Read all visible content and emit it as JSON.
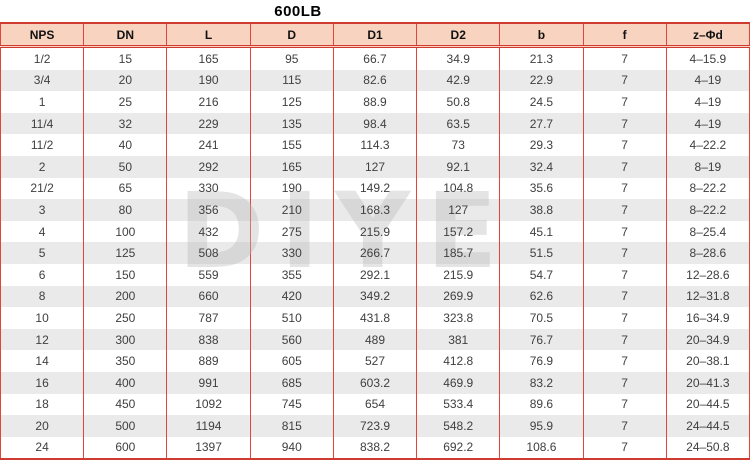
{
  "title": "600LB",
  "watermark_text": "DIYE",
  "colors": {
    "header_bg": "#f8d3bf",
    "grid_red": "#e0463c",
    "outer_red": "#cf3a31",
    "row_alt_bg": "#eaeaea",
    "text": "#3f3f3f",
    "watermark": "#bdbdbd"
  },
  "table": {
    "columns": [
      "NPS",
      "DN",
      "L",
      "D",
      "D1",
      "D2",
      "b",
      "f",
      "z–Φd"
    ],
    "rows": [
      [
        "1/2",
        "15",
        "165",
        "95",
        "66.7",
        "34.9",
        "21.3",
        "7",
        "4–15.9"
      ],
      [
        "3/4",
        "20",
        "190",
        "115",
        "82.6",
        "42.9",
        "22.9",
        "7",
        "4–19"
      ],
      [
        "1",
        "25",
        "216",
        "125",
        "88.9",
        "50.8",
        "24.5",
        "7",
        "4–19"
      ],
      [
        "11/4",
        "32",
        "229",
        "135",
        "98.4",
        "63.5",
        "27.7",
        "7",
        "4–19"
      ],
      [
        "11/2",
        "40",
        "241",
        "155",
        "114.3",
        "73",
        "29.3",
        "7",
        "4–22.2"
      ],
      [
        "2",
        "50",
        "292",
        "165",
        "127",
        "92.1",
        "32.4",
        "7",
        "8–19"
      ],
      [
        "21/2",
        "65",
        "330",
        "190",
        "149.2",
        "104.8",
        "35.6",
        "7",
        "8–22.2"
      ],
      [
        "3",
        "80",
        "356",
        "210",
        "168.3",
        "127",
        "38.8",
        "7",
        "8–22.2"
      ],
      [
        "4",
        "100",
        "432",
        "275",
        "215.9",
        "157.2",
        "45.1",
        "7",
        "8–25.4"
      ],
      [
        "5",
        "125",
        "508",
        "330",
        "266.7",
        "185.7",
        "51.5",
        "7",
        "8–28.6"
      ],
      [
        "6",
        "150",
        "559",
        "355",
        "292.1",
        "215.9",
        "54.7",
        "7",
        "12–28.6"
      ],
      [
        "8",
        "200",
        "660",
        "420",
        "349.2",
        "269.9",
        "62.6",
        "7",
        "12–31.8"
      ],
      [
        "10",
        "250",
        "787",
        "510",
        "431.8",
        "323.8",
        "70.5",
        "7",
        "16–34.9"
      ],
      [
        "12",
        "300",
        "838",
        "560",
        "489",
        "381",
        "76.7",
        "7",
        "20–34.9"
      ],
      [
        "14",
        "350",
        "889",
        "605",
        "527",
        "412.8",
        "76.9",
        "7",
        "20–38.1"
      ],
      [
        "16",
        "400",
        "991",
        "685",
        "603.2",
        "469.9",
        "83.2",
        "7",
        "20–41.3"
      ],
      [
        "18",
        "450",
        "1092",
        "745",
        "654",
        "533.4",
        "89.6",
        "7",
        "20–44.5"
      ],
      [
        "20",
        "500",
        "1194",
        "815",
        "723.9",
        "548.2",
        "95.9",
        "7",
        "24–44.5"
      ],
      [
        "24",
        "600",
        "1397",
        "940",
        "838.2",
        "692.2",
        "108.6",
        "7",
        "24–50.8"
      ]
    ]
  }
}
